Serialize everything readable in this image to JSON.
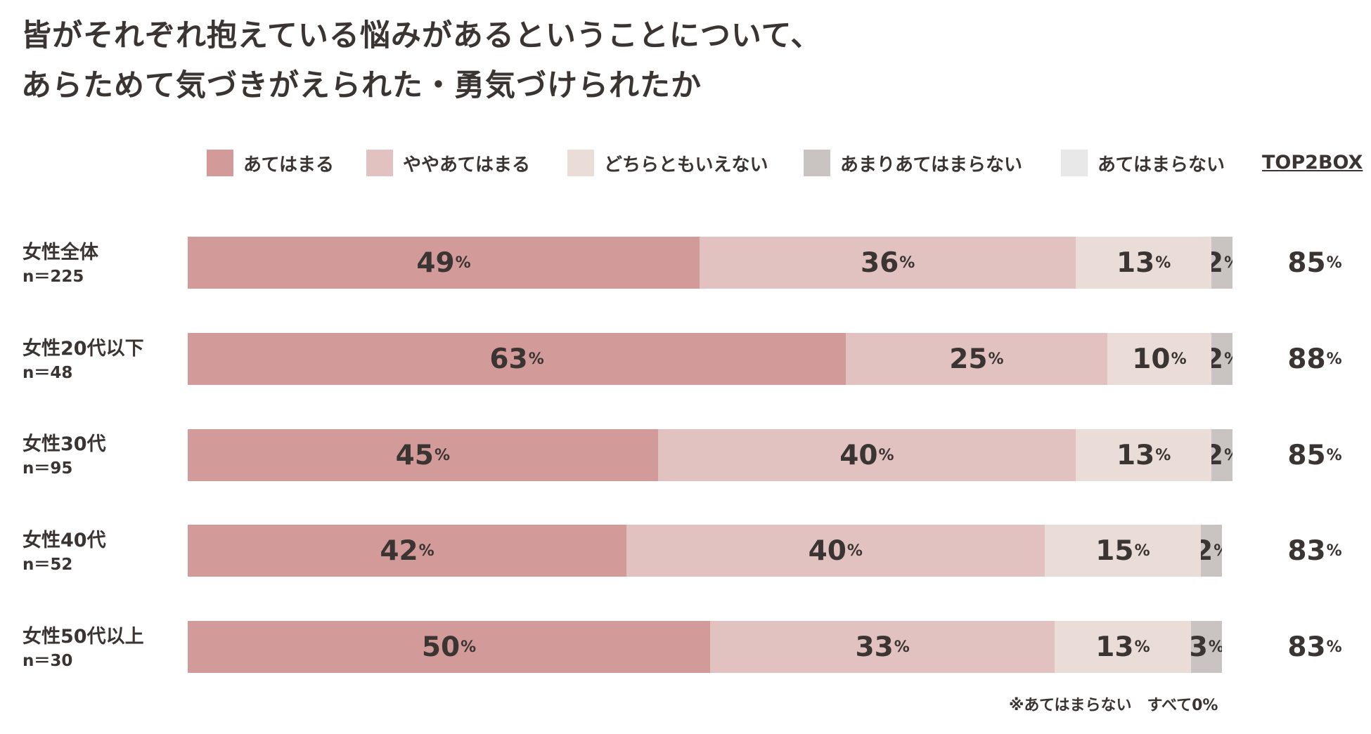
{
  "title": {
    "line1": "皆がそれぞれ抱えている悩みがあるということについて、",
    "line2": "あらためて気づきがえられた・勇気づけられたか"
  },
  "legend": [
    {
      "label": "あてはまる",
      "color": "#d39a9a"
    },
    {
      "label": "ややあてはまる",
      "color": "#e2c2c0"
    },
    {
      "label": "どちらともいえない",
      "color": "#eaddd8"
    },
    {
      "label": "あまりあてはまらない",
      "color": "#c9c4c2"
    },
    {
      "label": "あてはまらない",
      "color": "#e8e8e8"
    }
  ],
  "top2box_header": "TOP2BOX",
  "percent_sign": "%",
  "footnote": "※あてはまらない　すべて0%",
  "chart_data": {
    "type": "bar",
    "orientation": "horizontal",
    "stacked": true,
    "unit": "%",
    "title": "皆がそれぞれ抱えている悩みがあるということについて、あらためて気づきがえられた・勇気づけられたか",
    "categories": [
      "女性全体",
      "女性20代以下",
      "女性30代",
      "女性40代",
      "女性50代以上"
    ],
    "sample_sizes": [
      "n＝225",
      "n＝48",
      "n＝95",
      "n＝52",
      "n＝30"
    ],
    "series": [
      {
        "name": "あてはまる",
        "values": [
          49,
          63,
          45,
          42,
          50
        ]
      },
      {
        "name": "ややあてはまる",
        "values": [
          36,
          25,
          40,
          40,
          33
        ]
      },
      {
        "name": "どちらともいえない",
        "values": [
          13,
          10,
          13,
          15,
          13
        ]
      },
      {
        "name": "あまりあてはまらない",
        "values": [
          2,
          2,
          2,
          2,
          3
        ]
      },
      {
        "name": "あてはまらない",
        "values": [
          0,
          0,
          0,
          0,
          0
        ]
      }
    ],
    "top2box": [
      85,
      88,
      85,
      83,
      83
    ],
    "xlim": [
      0,
      100
    ]
  }
}
